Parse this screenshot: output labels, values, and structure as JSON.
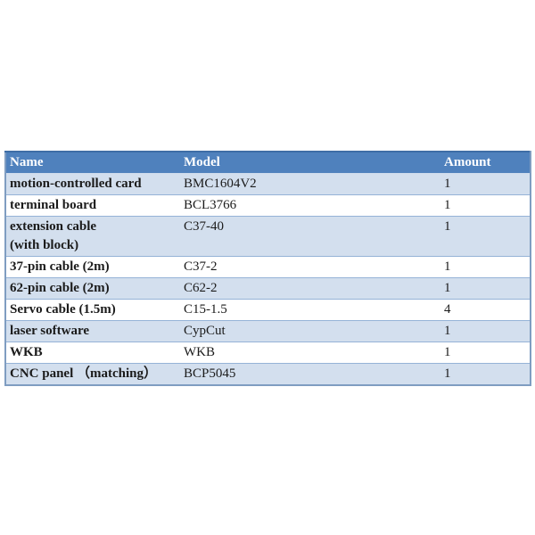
{
  "page": {
    "background": "#ffffff"
  },
  "table": {
    "columns": [
      {
        "key": "name",
        "label": "Name"
      },
      {
        "key": "model",
        "label": "Model"
      },
      {
        "key": "amount",
        "label": "Amount"
      }
    ],
    "rows": [
      {
        "name": "motion-controlled card",
        "model": "BMC1604V2",
        "amount": "1"
      },
      {
        "name": "terminal board",
        "model": "BCL3766",
        "amount": "1"
      },
      {
        "name": "extension cable\n(with block)",
        "model": "C37-40",
        "amount": "1"
      },
      {
        "name": "37-pin cable (2m)",
        "model": "C37-2",
        "amount": "1"
      },
      {
        "name": "62-pin cable (2m)",
        "model": "C62-2",
        "amount": "1"
      },
      {
        "name": "Servo cable (1.5m)",
        "model": "C15-1.5",
        "amount": "4"
      },
      {
        "name": "laser software",
        "model": "CypCut",
        "amount": "1"
      },
      {
        "name": "WKB",
        "model": "WKB",
        "amount": "1"
      },
      {
        "name": "CNC panel （matching）",
        "model": "BCP5045",
        "amount": "1"
      }
    ],
    "colors": {
      "page_bg": "#ffffff",
      "header_bg": "#4f81bd",
      "header_text": "#ffffff",
      "band_bg": "#d3dfee",
      "white_bg": "#ffffff",
      "row_border": "#95b3d7",
      "outer_border": "#7f9dc1",
      "top_border": "#3e6da6",
      "text": "#1b1b1b"
    }
  }
}
